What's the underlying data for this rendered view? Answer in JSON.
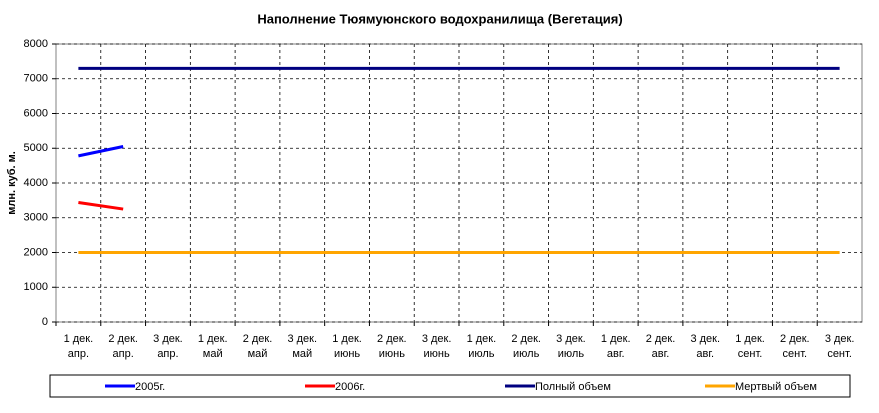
{
  "chart_data": {
    "type": "line",
    "title": "Наполнение Тюямуюнского водохранилища (Вегетация)",
    "y_label": "млн. куб. м.",
    "categories": [
      [
        "1 дек.",
        "апр."
      ],
      [
        "2 дек.",
        "апр."
      ],
      [
        "3 дек.",
        "апр."
      ],
      [
        "1 дек.",
        "май"
      ],
      [
        "2 дек.",
        "май"
      ],
      [
        "3 дек.",
        "май"
      ],
      [
        "1 дек.",
        "июнь"
      ],
      [
        "2 дек.",
        "июнь"
      ],
      [
        "3 дек.",
        "июнь"
      ],
      [
        "1 дек.",
        "июль"
      ],
      [
        "2 дек.",
        "июль"
      ],
      [
        "3 дек.",
        "июль"
      ],
      [
        "1 дек.",
        "авг."
      ],
      [
        "2 дек.",
        "авг."
      ],
      [
        "3 дек.",
        "авг."
      ],
      [
        "1 дек.",
        "сент."
      ],
      [
        "2 дек.",
        "сент."
      ],
      [
        "3 дек.",
        "сент."
      ]
    ],
    "series": [
      {
        "name": "2005г.",
        "color": "#0000ff",
        "values": [
          4780,
          5050,
          null,
          null,
          null,
          null,
          null,
          null,
          null,
          null,
          null,
          null,
          null,
          null,
          null,
          null,
          null,
          null
        ]
      },
      {
        "name": "2006г.",
        "color": "#ff0000",
        "values": [
          3440,
          3250,
          null,
          null,
          null,
          null,
          null,
          null,
          null,
          null,
          null,
          null,
          null,
          null,
          null,
          null,
          null,
          null
        ]
      },
      {
        "name": "Полный объем",
        "color": "#000080",
        "values": [
          7300,
          7300,
          7300,
          7300,
          7300,
          7300,
          7300,
          7300,
          7300,
          7300,
          7300,
          7300,
          7300,
          7300,
          7300,
          7300,
          7300,
          7300
        ]
      },
      {
        "name": "Мертвый объем",
        "color": "#ffa500",
        "values": [
          2000,
          2000,
          2000,
          2000,
          2000,
          2000,
          2000,
          2000,
          2000,
          2000,
          2000,
          2000,
          2000,
          2000,
          2000,
          2000,
          2000,
          2000
        ]
      }
    ],
    "ylim": [
      0,
      8000
    ],
    "yticks": [
      0,
      1000,
      2000,
      3000,
      4000,
      5000,
      6000,
      7000,
      8000
    ],
    "grid": true,
    "legend": "bottom"
  }
}
